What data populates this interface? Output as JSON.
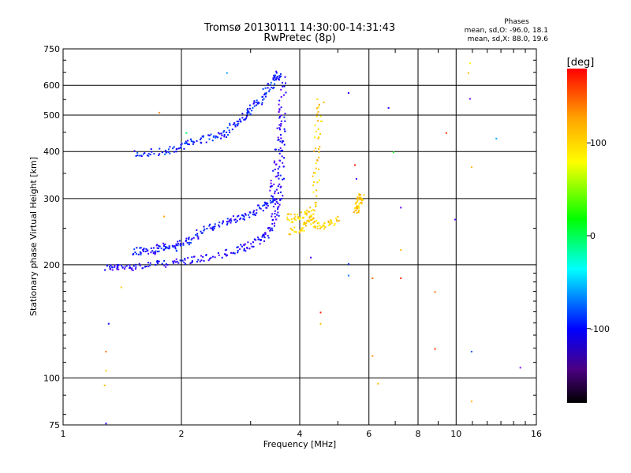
{
  "chart_data": {
    "type": "scatter",
    "title": "Tromsø 20130111 14:30:00-14:31:43",
    "subtitle": "RwPretec (8p)",
    "xlabel": "Frequency [MHz]",
    "ylabel": "Stationary phase Virtual Height [km]",
    "x_scale": "log",
    "y_scale": "log",
    "xlim": [
      1,
      16
    ],
    "ylim": [
      75,
      750
    ],
    "x_ticks": [
      1,
      2,
      4,
      6,
      8,
      10,
      16
    ],
    "y_ticks": [
      75,
      100,
      200,
      300,
      400,
      500,
      600,
      750
    ],
    "grid": true,
    "info": {
      "heading": "Phases",
      "line1": "mean, sd,O: -96.0, 18.1",
      "line2": "mean, sd,X:  88.0, 19.6"
    },
    "colorbar": {
      "label": "[deg]",
      "min": -180,
      "max": 180,
      "ticks": [
        100,
        0,
        -100
      ],
      "tick_labels": [
        "100",
        "0",
        "-100"
      ]
    },
    "traces": [
      {
        "x": [
          1.28,
          1.35,
          1.45,
          1.6,
          1.8,
          2.0,
          2.2,
          2.5,
          2.8,
          3.0,
          3.2,
          3.35,
          3.45,
          3.52,
          3.56,
          3.58,
          3.6
        ],
        "y": [
          198,
          197,
          198,
          200,
          202,
          205,
          208,
          213,
          220,
          227,
          236,
          250,
          270,
          300,
          350,
          420,
          520
        ],
        "phase": -110
      },
      {
        "x": [
          1.5,
          1.6,
          1.7,
          1.8,
          1.9,
          2.0,
          2.1,
          2.3,
          2.5,
          2.7,
          2.9,
          3.1,
          3.3,
          3.45
        ],
        "y": [
          215,
          220,
          218,
          225,
          222,
          230,
          235,
          250,
          258,
          265,
          272,
          280,
          290,
          300
        ],
        "phase": -100
      },
      {
        "x": [
          3.38,
          3.45,
          3.52,
          3.58,
          3.62
        ],
        "y": [
          300,
          350,
          420,
          520,
          640
        ],
        "phase": -115
      },
      {
        "x": [
          1.5,
          1.7,
          1.9,
          2.05,
          2.2,
          2.4,
          2.6,
          2.75,
          2.9,
          3.05,
          3.2,
          3.35,
          3.45,
          3.55
        ],
        "y": [
          395,
          400,
          405,
          420,
          430,
          440,
          450,
          480,
          500,
          530,
          560,
          600,
          630,
          650
        ],
        "phase": -95
      },
      {
        "x": [
          3.8,
          4.0,
          4.2,
          4.35,
          4.4,
          4.45,
          4.5
        ],
        "y": [
          245,
          250,
          260,
          300,
          380,
          470,
          560
        ],
        "phase": 100
      },
      {
        "x": [
          3.7,
          3.9,
          4.1,
          4.3,
          4.5,
          4.7,
          5.0
        ],
        "y": [
          270,
          265,
          275,
          262,
          255,
          258,
          265
        ],
        "phase": 95
      },
      {
        "x": [
          5.5,
          5.6,
          5.65,
          5.7
        ],
        "y": [
          280,
          290,
          300,
          310
        ],
        "phase": 105
      }
    ],
    "scattered_points": [
      {
        "x": 1.28,
        "y": 76,
        "phase": -110
      },
      {
        "x": 1.3,
        "y": 140,
        "phase": -105
      },
      {
        "x": 1.28,
        "y": 118,
        "phase": 140
      },
      {
        "x": 1.28,
        "y": 105,
        "phase": 100
      },
      {
        "x": 1.27,
        "y": 96,
        "phase": 110
      },
      {
        "x": 1.4,
        "y": 175,
        "phase": 100
      },
      {
        "x": 1.75,
        "y": 510,
        "phase": 130
      },
      {
        "x": 1.8,
        "y": 270,
        "phase": 120
      },
      {
        "x": 2.05,
        "y": 450,
        "phase": 0
      },
      {
        "x": 2.6,
        "y": 650,
        "phase": -60
      },
      {
        "x": 4.25,
        "y": 210,
        "phase": -120
      },
      {
        "x": 4.5,
        "y": 150,
        "phase": 170
      },
      {
        "x": 4.5,
        "y": 140,
        "phase": 110
      },
      {
        "x": 5.3,
        "y": 575,
        "phase": -110
      },
      {
        "x": 5.3,
        "y": 202,
        "phase": -90
      },
      {
        "x": 5.3,
        "y": 188,
        "phase": -70
      },
      {
        "x": 5.5,
        "y": 370,
        "phase": 170
      },
      {
        "x": 5.55,
        "y": 340,
        "phase": -120
      },
      {
        "x": 6.1,
        "y": 185,
        "phase": 140
      },
      {
        "x": 6.1,
        "y": 115,
        "phase": 130
      },
      {
        "x": 6.3,
        "y": 97,
        "phase": 110
      },
      {
        "x": 6.7,
        "y": 525,
        "phase": -110
      },
      {
        "x": 6.9,
        "y": 400,
        "phase": 20
      },
      {
        "x": 7.2,
        "y": 285,
        "phase": -130
      },
      {
        "x": 7.2,
        "y": 220,
        "phase": 110
      },
      {
        "x": 7.2,
        "y": 185,
        "phase": 165
      },
      {
        "x": 8.8,
        "y": 170,
        "phase": 140
      },
      {
        "x": 8.8,
        "y": 120,
        "phase": 160
      },
      {
        "x": 9.4,
        "y": 450,
        "phase": 160
      },
      {
        "x": 9.9,
        "y": 265,
        "phase": -120
      },
      {
        "x": 10.8,
        "y": 690,
        "phase": 80
      },
      {
        "x": 10.7,
        "y": 650,
        "phase": 110
      },
      {
        "x": 10.8,
        "y": 555,
        "phase": -130
      },
      {
        "x": 10.9,
        "y": 365,
        "phase": 110
      },
      {
        "x": 10.9,
        "y": 118,
        "phase": -80
      },
      {
        "x": 10.9,
        "y": 87,
        "phase": 110
      },
      {
        "x": 12.6,
        "y": 435,
        "phase": -60
      },
      {
        "x": 14.5,
        "y": 107,
        "phase": -140
      }
    ]
  }
}
